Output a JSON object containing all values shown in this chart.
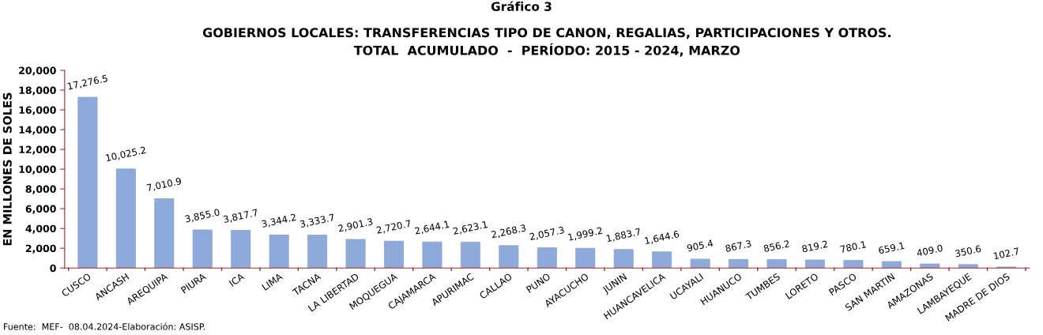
{
  "chart_data": {
    "type": "bar",
    "title": "GOBIERNOS LOCALES: TRANSFERENCIAS TIPO DE CANON, REGALIAS, PARTICIPACIONES Y OTROS.\nTOTAL  ACUMULADO  -  PERÍODO: 2015 - 2024, MARZO",
    "ylabel": "EN MILLONES DE SOLES",
    "annotations": [
      "Gráfico 3",
      "Fuente:  MEF-  08.04.2024-Elaboración: ASISP."
    ],
    "categories": [
      "CUSCO",
      "ANCASH",
      "AREQUIPA",
      "PIURA",
      "ICA",
      "LIMA",
      "TACNA",
      "LA LIBERTAD",
      "MOQUEGUA",
      "CAJAMARCA",
      "APURIMAC",
      "CALLAO",
      "PUNO",
      "AYACUCHO",
      "JUNIN",
      "HUANCAVELICA",
      "UCAYALI",
      "HUANUCO",
      "TUMBES",
      "LORETO",
      "PASCO",
      "SAN MARTIN",
      "AMAZONAS",
      "LAMBAYEQUE",
      "MADRE DE DIOS"
    ],
    "values": [
      17276.5,
      10025.2,
      7010.9,
      3855.0,
      3817.7,
      3344.2,
      3333.7,
      2901.3,
      2720.7,
      2644.1,
      2623.1,
      2268.3,
      2057.3,
      1999.2,
      1883.7,
      1644.6,
      905.4,
      867.3,
      856.2,
      819.2,
      780.1,
      659.1,
      409.0,
      350.6,
      102.7
    ],
    "value_labels": [
      "17,276.5",
      "10,025.2",
      "7,010.9",
      "3,855.0",
      "3,817.7",
      "3,344.2",
      "3,333.7",
      "2,901.3",
      "2,720.7",
      "2,644.1",
      "2,623.1",
      "2,268.3",
      "2,057.3",
      "1,999.2",
      "1,883.7",
      "1,644.6",
      "905.4",
      "867.3",
      "856.2",
      "819.2",
      "780.1",
      "659.1",
      "409.0",
      "350.6",
      "102.7"
    ],
    "color": "#8eaadb",
    "ylim": [
      0,
      20000
    ],
    "yticks": [
      {
        "value": 0,
        "label": "0"
      },
      {
        "value": 2000,
        "label": "2,000"
      },
      {
        "value": 4000,
        "label": "4,000"
      },
      {
        "value": 6000,
        "label": "6,000"
      },
      {
        "value": 8000,
        "label": "8,000"
      },
      {
        "value": 10000,
        "label": "10,000"
      },
      {
        "value": 12000,
        "label": "12,000"
      },
      {
        "value": 14000,
        "label": "14,000"
      },
      {
        "value": 16000,
        "label": "16,000"
      },
      {
        "value": 18000,
        "label": "18,000"
      },
      {
        "value": 20000,
        "label": "20,000"
      }
    ],
    "grid": false,
    "legend": false
  }
}
